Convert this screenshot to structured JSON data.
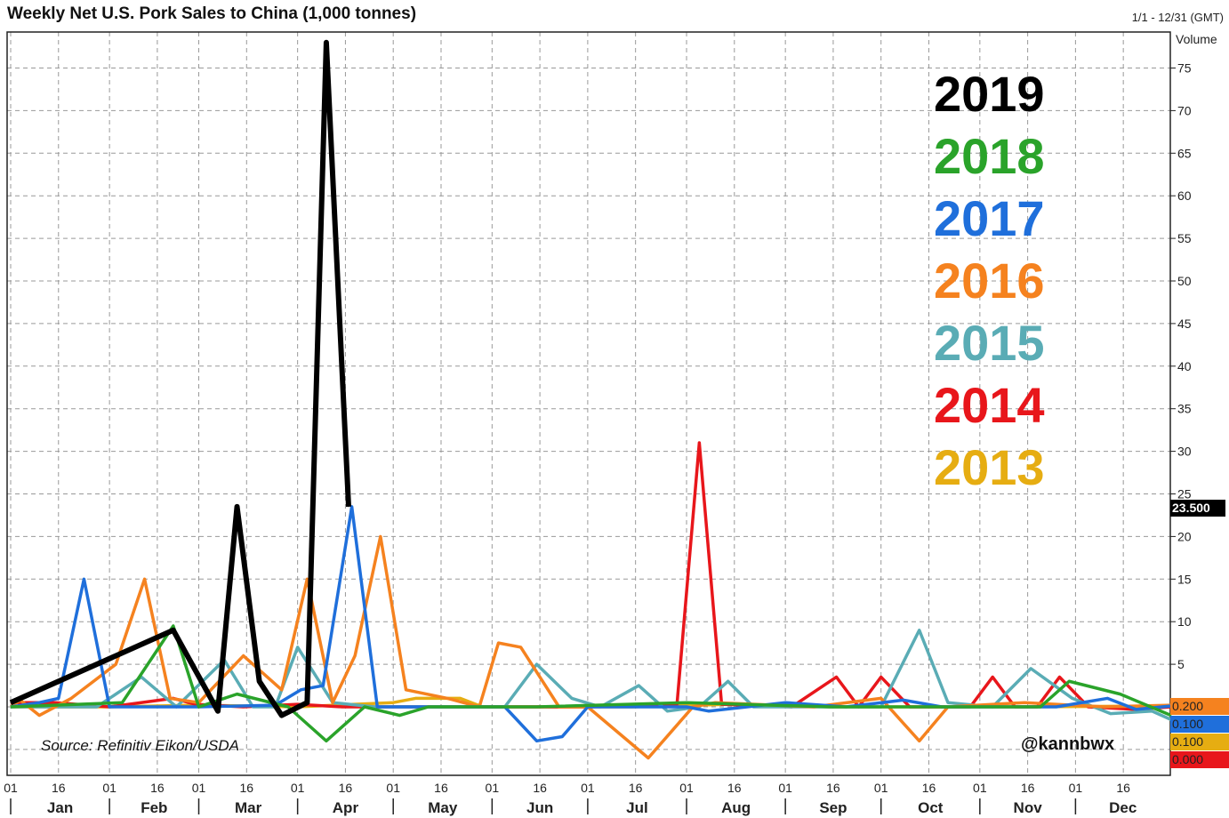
{
  "title": "Weekly Net U.S. Pork Sales to China (1,000 tonnes)",
  "date_range": "1/1 - 12/31 (GMT)",
  "axis_label": "Volume",
  "source": "Source: Refinitiv Eikon/USDA",
  "handle": "@kannbwx",
  "value_boxes": [
    {
      "text": "23.500",
      "color": "#000000",
      "text_color": "#ffffff"
    },
    {
      "text": "0.200",
      "color": "#f5821f",
      "text_color": "#222222"
    },
    {
      "text": "0.100",
      "color": "#1f6fdb",
      "text_color": "#222222"
    },
    {
      "text": "0.100",
      "color": "#e6ad12",
      "text_color": "#222222"
    },
    {
      "text": "0.000",
      "color": "#e8161b",
      "text_color": "#222222"
    }
  ],
  "chart_data": {
    "type": "line",
    "title": "Weekly Net U.S. Pork Sales to China (1,000 tonnes)",
    "ylabel": "Volume",
    "ylim": [
      -8,
      80
    ],
    "yticks": [
      5,
      10,
      15,
      20,
      25,
      30,
      35,
      40,
      45,
      50,
      55,
      60,
      65,
      70,
      75
    ],
    "xlim": [
      "01-01",
      "12-31"
    ],
    "months": [
      "Jan",
      "Feb",
      "Mar",
      "Apr",
      "May",
      "Jun",
      "Jul",
      "Aug",
      "Sep",
      "Oct",
      "Nov",
      "Dec"
    ],
    "day_ticks": [
      "01",
      "16"
    ],
    "grid": true,
    "legend_position": "top-right",
    "series": [
      {
        "name": "2013",
        "color": "#e6ad12",
        "points": [
          [
            "01-01",
            0
          ],
          [
            "02-01",
            0
          ],
          [
            "03-01",
            0.2
          ],
          [
            "04-01",
            0
          ],
          [
            "05-01",
            0.5
          ],
          [
            "05-08",
            1
          ],
          [
            "05-22",
            1
          ],
          [
            "05-29",
            0
          ],
          [
            "06-15",
            0
          ],
          [
            "07-15",
            0
          ],
          [
            "08-15",
            0.3
          ],
          [
            "09-15",
            0
          ],
          [
            "10-15",
            0
          ],
          [
            "11-15",
            0
          ],
          [
            "12-31",
            0.1
          ]
        ]
      },
      {
        "name": "2014",
        "color": "#e8161b",
        "points": [
          [
            "01-01",
            0.5
          ],
          [
            "01-15",
            0.5
          ],
          [
            "02-01",
            0
          ],
          [
            "02-21",
            1
          ],
          [
            "02-28",
            0.3
          ],
          [
            "03-15",
            0
          ],
          [
            "04-01",
            0.3
          ],
          [
            "04-15",
            0
          ],
          [
            "05-01",
            0
          ],
          [
            "06-01",
            0
          ],
          [
            "07-01",
            0
          ],
          [
            "07-29",
            0.3
          ],
          [
            "08-05",
            31
          ],
          [
            "08-12",
            0.3
          ],
          [
            "09-03",
            0
          ],
          [
            "09-17",
            3.5
          ],
          [
            "09-24",
            0
          ],
          [
            "10-01",
            3.5
          ],
          [
            "10-10",
            0
          ],
          [
            "10-29",
            0
          ],
          [
            "11-05",
            3.5
          ],
          [
            "11-12",
            0
          ],
          [
            "11-19",
            0
          ],
          [
            "11-26",
            3.5
          ],
          [
            "12-05",
            0
          ],
          [
            "12-20",
            -0.3
          ],
          [
            "12-31",
            0
          ]
        ]
      },
      {
        "name": "2015",
        "color": "#5aacb5",
        "points": [
          [
            "01-01",
            0
          ],
          [
            "01-28",
            0
          ],
          [
            "02-11",
            3.5
          ],
          [
            "02-22",
            0
          ],
          [
            "03-09",
            5.5
          ],
          [
            "03-18",
            0
          ],
          [
            "03-25",
            0
          ],
          [
            "04-01",
            7
          ],
          [
            "04-12",
            0.5
          ],
          [
            "04-25",
            0
          ],
          [
            "06-05",
            0
          ],
          [
            "06-15",
            5
          ],
          [
            "06-26",
            1
          ],
          [
            "07-05",
            0
          ],
          [
            "07-17",
            2.5
          ],
          [
            "07-26",
            -0.5
          ],
          [
            "08-05",
            0
          ],
          [
            "08-14",
            3
          ],
          [
            "08-22",
            0
          ],
          [
            "09-15",
            0
          ],
          [
            "10-01",
            0
          ],
          [
            "10-13",
            9
          ],
          [
            "10-22",
            0.5
          ],
          [
            "11-05",
            0
          ],
          [
            "11-17",
            4.5
          ],
          [
            "11-30",
            1
          ],
          [
            "12-12",
            -0.8
          ],
          [
            "12-25",
            -0.5
          ],
          [
            "12-31",
            -1.5
          ]
        ]
      },
      {
        "name": "2016",
        "color": "#f5821f",
        "points": [
          [
            "01-01",
            0
          ],
          [
            "01-04",
            0.8
          ],
          [
            "01-10",
            -1
          ],
          [
            "01-20",
            1
          ],
          [
            "02-03",
            5
          ],
          [
            "02-12",
            15
          ],
          [
            "02-20",
            1
          ],
          [
            "03-01",
            0.5
          ],
          [
            "03-15",
            6
          ],
          [
            "03-27",
            2
          ],
          [
            "04-04",
            15
          ],
          [
            "04-12",
            0.5
          ],
          [
            "04-19",
            6
          ],
          [
            "04-27",
            20
          ],
          [
            "05-05",
            2
          ],
          [
            "05-18",
            1
          ],
          [
            "05-28",
            0
          ],
          [
            "06-03",
            7.5
          ],
          [
            "06-10",
            7
          ],
          [
            "06-22",
            0
          ],
          [
            "07-01",
            0
          ],
          [
            "07-20",
            -6
          ],
          [
            "08-03",
            0
          ],
          [
            "08-10",
            0.5
          ],
          [
            "09-10",
            0
          ],
          [
            "10-01",
            1
          ],
          [
            "10-13",
            -4
          ],
          [
            "10-22",
            0
          ],
          [
            "11-15",
            0.5
          ],
          [
            "12-10",
            0
          ],
          [
            "12-31",
            0.2
          ]
        ]
      },
      {
        "name": "2017",
        "color": "#1f6fdb",
        "points": [
          [
            "01-01",
            0
          ],
          [
            "01-10",
            0.5
          ],
          [
            "01-16",
            1
          ],
          [
            "01-24",
            15
          ],
          [
            "02-01",
            0
          ],
          [
            "03-01",
            0
          ],
          [
            "03-25",
            0.2
          ],
          [
            "04-02",
            2
          ],
          [
            "04-09",
            2.5
          ],
          [
            "04-18",
            23.5
          ],
          [
            "04-26",
            0
          ],
          [
            "05-15",
            0
          ],
          [
            "06-05",
            0
          ],
          [
            "06-15",
            -4
          ],
          [
            "06-23",
            -3.5
          ],
          [
            "07-01",
            0
          ],
          [
            "08-01",
            0
          ],
          [
            "08-08",
            -0.5
          ],
          [
            "08-20",
            0
          ],
          [
            "09-01",
            0.5
          ],
          [
            "09-20",
            0
          ],
          [
            "10-08",
            0.8
          ],
          [
            "10-20",
            0
          ],
          [
            "11-25",
            0
          ],
          [
            "12-11",
            1
          ],
          [
            "12-20",
            -0.3
          ],
          [
            "12-31",
            0.1
          ]
        ]
      },
      {
        "name": "2018",
        "color": "#2aa32a",
        "points": [
          [
            "01-01",
            0
          ],
          [
            "02-05",
            0.5
          ],
          [
            "02-21",
            9.5
          ],
          [
            "03-01",
            0
          ],
          [
            "03-13",
            1.5
          ],
          [
            "03-29",
            0
          ],
          [
            "04-10",
            -4
          ],
          [
            "04-22",
            0
          ],
          [
            "05-03",
            -1
          ],
          [
            "05-12",
            0
          ],
          [
            "06-15",
            0
          ],
          [
            "08-01",
            0.5
          ],
          [
            "09-15",
            0
          ],
          [
            "11-20",
            0
          ],
          [
            "11-29",
            3
          ],
          [
            "12-15",
            1.5
          ],
          [
            "12-31",
            -1
          ]
        ]
      },
      {
        "name": "2019",
        "color": "#000000",
        "points": [
          [
            "01-01",
            0.5
          ],
          [
            "02-21",
            9
          ],
          [
            "03-07",
            -0.5
          ],
          [
            "03-13",
            23.5
          ],
          [
            "03-20",
            3
          ],
          [
            "03-27",
            -1
          ],
          [
            "04-04",
            0.5
          ],
          [
            "04-10",
            78
          ],
          [
            "04-17",
            23.5
          ]
        ]
      }
    ]
  }
}
